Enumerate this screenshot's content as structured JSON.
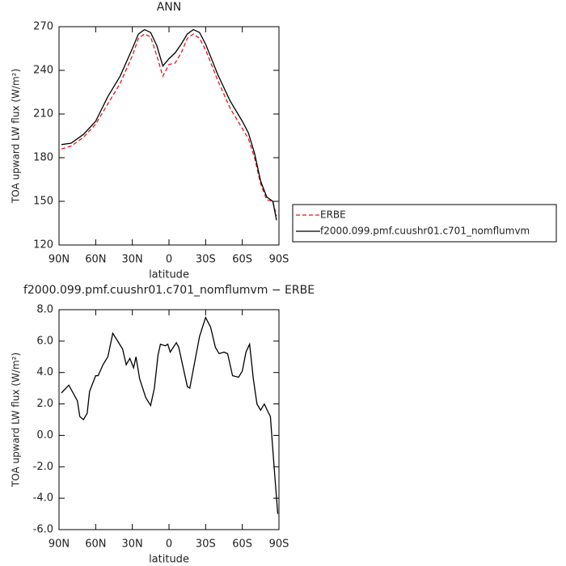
{
  "chart_data": [
    {
      "type": "line",
      "title": "ANN",
      "xlabel": "latitude",
      "ylabel": "TOA upward LW flux (W/m²)",
      "x": [
        88,
        80,
        70,
        60,
        50,
        40,
        30,
        25,
        20,
        15,
        10,
        5,
        0,
        -5,
        -10,
        -15,
        -20,
        -25,
        -30,
        -40,
        -50,
        -60,
        -65,
        -70,
        -75,
        -80,
        -85,
        -88
      ],
      "series": [
        {
          "name": "ERBE",
          "color": "#e8141c",
          "dash": true,
          "values": [
            186,
            188,
            194,
            203,
            217,
            231,
            250,
            262,
            265,
            263,
            250,
            236,
            244,
            245,
            252,
            262,
            265,
            262,
            254,
            233,
            214,
            200,
            193,
            180,
            162,
            151,
            150,
            140
          ]
        },
        {
          "name": "f2000.099.pmf.cuushr01.c701_nomflumvm",
          "color": "#000000",
          "dash": false,
          "values": [
            189,
            190,
            196,
            205,
            222,
            236,
            255,
            265,
            268,
            266,
            257,
            243,
            248,
            252,
            258,
            265,
            268,
            266,
            258,
            237,
            219,
            205,
            197,
            183,
            164,
            153,
            150,
            137
          ]
        }
      ],
      "xlim": [
        90,
        -90
      ],
      "xticks": [
        {
          "value": 90,
          "label": "90N"
        },
        {
          "value": 60,
          "label": "60N"
        },
        {
          "value": 30,
          "label": "30N"
        },
        0,
        {
          "value": -30,
          "label": "30S"
        },
        {
          "value": -60,
          "label": "60S"
        },
        {
          "value": -90,
          "label": "90S"
        }
      ],
      "ylim": [
        120,
        270
      ],
      "yticks": [
        120,
        150,
        180,
        210,
        240,
        270
      ],
      "legend": "right"
    },
    {
      "type": "line",
      "title": "f2000.099.pmf.cuushr01.c701_nomflumvm − ERBE",
      "xlabel": "latitude",
      "ylabel": "TOA upward LW flux (W/m²)",
      "x": [
        88,
        82,
        75,
        73,
        70,
        67,
        65,
        60,
        58,
        54,
        50,
        46,
        38,
        35,
        32,
        29,
        27,
        24,
        19,
        15,
        12,
        9,
        7,
        3,
        1,
        -1,
        -6,
        -8,
        -15,
        -17,
        -25,
        -30,
        -34,
        -38,
        -41,
        -45,
        -48,
        -52,
        -57,
        -60,
        -63,
        -66,
        -69,
        -72,
        -75,
        -78,
        -81,
        -83,
        -86,
        -89
      ],
      "series": [
        {
          "color": "#000000",
          "dash": false,
          "values": [
            2.7,
            3.2,
            2.2,
            1.2,
            1.0,
            1.4,
            2.8,
            3.8,
            3.8,
            4.5,
            5.0,
            6.5,
            5.5,
            4.5,
            4.9,
            4.3,
            5.0,
            3.6,
            2.4,
            1.9,
            3.0,
            5.1,
            5.8,
            5.7,
            5.8,
            5.3,
            5.9,
            5.6,
            3.1,
            3.0,
            6.3,
            7.5,
            6.9,
            5.6,
            5.2,
            5.3,
            5.2,
            3.8,
            3.7,
            4.1,
            5.3,
            5.8,
            3.6,
            2.0,
            1.6,
            2.0,
            1.5,
            1.2,
            -2.0,
            -5.0
          ]
        }
      ],
      "xlim": [
        90,
        -90
      ],
      "xticks": [
        {
          "value": 90,
          "label": "90N"
        },
        {
          "value": 60,
          "label": "60N"
        },
        {
          "value": 30,
          "label": "30N"
        },
        0,
        {
          "value": -30,
          "label": "30S"
        },
        {
          "value": -60,
          "label": "60S"
        },
        {
          "value": -90,
          "label": "90S"
        }
      ],
      "ylim": [
        -6,
        8
      ],
      "yticks": [
        {
          "value": -6,
          "label": "-6.0"
        },
        {
          "value": -4,
          "label": "-4.0"
        },
        {
          "value": -2,
          "label": "-2.0"
        },
        {
          "value": 0,
          "label": "0.0"
        },
        {
          "value": 2,
          "label": "2.0"
        },
        {
          "value": 4,
          "label": "4.0"
        },
        {
          "value": 6,
          "label": "6.0"
        },
        {
          "value": 8,
          "label": "8.0"
        }
      ]
    }
  ]
}
